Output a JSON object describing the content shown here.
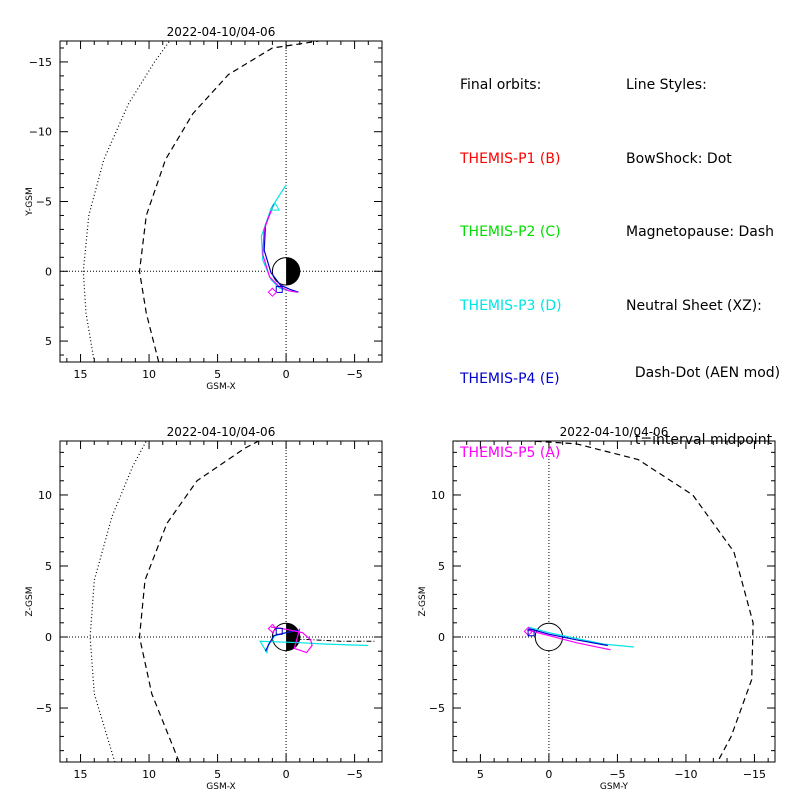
{
  "legend": {
    "orbits_title": "Final orbits:",
    "orbits": [
      {
        "label": "THEMIS-P1 (B)",
        "color": "#ff0000"
      },
      {
        "label": "THEMIS-P2 (C)",
        "color": "#00dd00"
      },
      {
        "label": "THEMIS-P3 (D)",
        "color": "#00e5e5"
      },
      {
        "label": "THEMIS-P4 (E)",
        "color": "#0000cc"
      },
      {
        "label": "THEMIS-P5 (A)",
        "color": "#ff00ff"
      }
    ],
    "styles_title": "Line Styles:",
    "styles": [
      "BowShock: Dot",
      "Magnetopause: Dash",
      "Neutral Sheet (XZ):",
      "  Dash-Dot (AEN mod)",
      "  t=interval midpoint"
    ]
  },
  "chart_data": [
    {
      "type": "line",
      "title": "2022-04-10/04-06",
      "xlabel": "GSM-X",
      "ylabel": "Y-GSM",
      "xlim": [
        16.5,
        -7
      ],
      "ylim": [
        6.5,
        -16.5
      ],
      "xticks": [
        15,
        10,
        5,
        0,
        -5
      ],
      "yticks": [
        -15,
        -10,
        -5,
        0,
        5
      ],
      "earth_shading": "x",
      "bow_shock": [
        [
          14,
          6.5
        ],
        [
          14.6,
          3
        ],
        [
          14.8,
          0
        ],
        [
          14.4,
          -4
        ],
        [
          13.3,
          -8
        ],
        [
          11.5,
          -12
        ],
        [
          9.6,
          -15
        ],
        [
          8.5,
          -16.5
        ]
      ],
      "magnetopause": [
        [
          9.3,
          6.5
        ],
        [
          10.2,
          3
        ],
        [
          10.7,
          0
        ],
        [
          10.2,
          -4
        ],
        [
          8.8,
          -8
        ],
        [
          6.8,
          -11.3
        ],
        [
          4.2,
          -14.1
        ],
        [
          1,
          -16
        ],
        [
          -2.4,
          -16.5
        ]
      ],
      "orbits": [
        {
          "name": "THEMIS-P3 (D)",
          "color": "#00e5e5",
          "points": [
            [
              0,
              -6.2
            ],
            [
              1.1,
              -4.5
            ],
            [
              1.8,
              -2.5
            ],
            [
              1.7,
              -0.8
            ],
            [
              1.1,
              0.6
            ],
            [
              0.5,
              1.2
            ],
            [
              -0.2,
              1.4
            ],
            [
              -0.8,
              1.5
            ]
          ]
        },
        {
          "name": "THEMIS-P4 (E)",
          "color": "#0000cc",
          "points": [
            [
              0.9,
              -4.8
            ],
            [
              1.5,
              -3.3
            ],
            [
              1.6,
              -1.5
            ],
            [
              1.1,
              0.1
            ],
            [
              0.4,
              1
            ],
            [
              -0.3,
              1.3
            ],
            [
              -0.9,
              1.5
            ]
          ]
        },
        {
          "name": "THEMIS-P5 (A)",
          "color": "#ff00ff",
          "points": [
            [
              1,
              -4.6
            ],
            [
              1.6,
              -3
            ],
            [
              1.7,
              -1.2
            ],
            [
              1.2,
              0.4
            ],
            [
              0.5,
              1.1
            ],
            [
              -0.2,
              1.4
            ],
            [
              -0.8,
              1.5
            ]
          ]
        }
      ],
      "markers": [
        {
          "color": "#0000cc",
          "shape": "square",
          "x": 0.5,
          "y": 1.3
        },
        {
          "color": "#ff00ff",
          "shape": "diamond",
          "x": 1,
          "y": 1.5
        },
        {
          "color": "#00e5e5",
          "shape": "triangle",
          "x": 0.8,
          "y": -4.6
        }
      ]
    },
    {
      "type": "line",
      "title": "2022-04-10/04-06",
      "xlabel": "GSM-X",
      "ylabel": "Z-GSM",
      "xlim": [
        16.5,
        -7
      ],
      "ylim": [
        -8.8,
        13.8
      ],
      "xticks": [
        15,
        10,
        5,
        0,
        -5
      ],
      "yticks": [
        -5,
        0,
        5,
        10
      ],
      "earth_shading": "x",
      "bow_shock": [
        [
          12.5,
          -8.8
        ],
        [
          14,
          -4
        ],
        [
          14.3,
          0
        ],
        [
          14,
          4
        ],
        [
          12.7,
          8.5
        ],
        [
          11.2,
          12
        ],
        [
          10.2,
          13.8
        ]
      ],
      "magnetopause": [
        [
          7.8,
          -8.8
        ],
        [
          9.8,
          -4
        ],
        [
          10.7,
          0
        ],
        [
          10.3,
          4
        ],
        [
          8.7,
          8
        ],
        [
          6.5,
          11
        ],
        [
          3,
          13.3
        ],
        [
          2,
          13.8
        ]
      ],
      "neutral_sheet": [
        [
          0.7,
          -0.1
        ],
        [
          -2,
          -0.2
        ],
        [
          -4,
          -0.3
        ],
        [
          -6.5,
          -0.3
        ]
      ],
      "orbits": [
        {
          "name": "THEMIS-P3 (D)",
          "color": "#00e5e5",
          "points": [
            [
              -0.9,
              0.5
            ],
            [
              0,
              0.3
            ],
            [
              0.8,
              0.1
            ],
            [
              1.3,
              -0.5
            ],
            [
              1.4,
              -1.1
            ],
            [
              1.9,
              -0.3
            ],
            [
              -1,
              -0.4
            ],
            [
              -3,
              -0.5
            ],
            [
              -6,
              -0.6
            ]
          ]
        },
        {
          "name": "THEMIS-P4 (E)",
          "color": "#0000cc",
          "points": [
            [
              -0.9,
              0.5
            ],
            [
              0,
              0.3
            ],
            [
              0.9,
              0.1
            ],
            [
              1.3,
              -0.6
            ],
            [
              1.5,
              -1
            ]
          ]
        },
        {
          "name": "THEMIS-P5 (A)",
          "color": "#ff00ff",
          "points": [
            [
              -1,
              0.6
            ],
            [
              -0.6,
              -0.8
            ],
            [
              -1.5,
              -1.1
            ],
            [
              -1.9,
              -0.6
            ],
            [
              -1.8,
              -0.2
            ],
            [
              -1.2,
              0.3
            ],
            [
              0.3,
              0.6
            ],
            [
              1.1,
              0.7
            ]
          ]
        }
      ],
      "markers": [
        {
          "color": "#ff00ff",
          "shape": "diamond",
          "x": 1,
          "y": 0.6
        },
        {
          "color": "#0000cc",
          "shape": "square",
          "x": 0.5,
          "y": 0.4
        }
      ]
    },
    {
      "type": "line",
      "title": "2022-04-10/04-06",
      "xlabel": "GSM-Y",
      "ylabel": "Z-GSM",
      "xlim": [
        7,
        -16.5
      ],
      "ylim": [
        -8.8,
        13.8
      ],
      "xticks": [
        5,
        0,
        -5,
        -10,
        -15
      ],
      "yticks": [
        -5,
        0,
        5,
        10
      ],
      "earth_shading": "none",
      "magnetopause": [
        [
          6.8,
          13.8
        ],
        [
          3,
          13.9
        ],
        [
          -2,
          13.6
        ],
        [
          -6.5,
          12.5
        ],
        [
          -10.5,
          10
        ],
        [
          -13.5,
          6
        ],
        [
          -14.9,
          1
        ],
        [
          -14.8,
          -3
        ],
        [
          -13.3,
          -7
        ],
        [
          -12.3,
          -8.8
        ]
      ],
      "orbits": [
        {
          "name": "THEMIS-P3 (D)",
          "color": "#00e5e5",
          "points": [
            [
              1.5,
              0.7
            ],
            [
              0,
              0.3
            ],
            [
              -2,
              -0.1
            ],
            [
              -4,
              -0.5
            ],
            [
              -6.2,
              -0.7
            ]
          ]
        },
        {
          "name": "THEMIS-P4 (E)",
          "color": "#0000cc",
          "points": [
            [
              1.5,
              0.6
            ],
            [
              0,
              0.2
            ],
            [
              -2,
              -0.2
            ],
            [
              -4.3,
              -0.6
            ]
          ]
        },
        {
          "name": "THEMIS-P5 (A)",
          "color": "#ff00ff",
          "points": [
            [
              1.6,
              0.5
            ],
            [
              0,
              0.1
            ],
            [
              -2,
              -0.4
            ],
            [
              -4.5,
              -0.9
            ]
          ]
        }
      ],
      "markers": [
        {
          "color": "#ff00ff",
          "shape": "diamond",
          "x": 1.5,
          "y": 0.4
        },
        {
          "color": "#0000cc",
          "shape": "square",
          "x": 1.3,
          "y": 0.3
        }
      ]
    }
  ]
}
